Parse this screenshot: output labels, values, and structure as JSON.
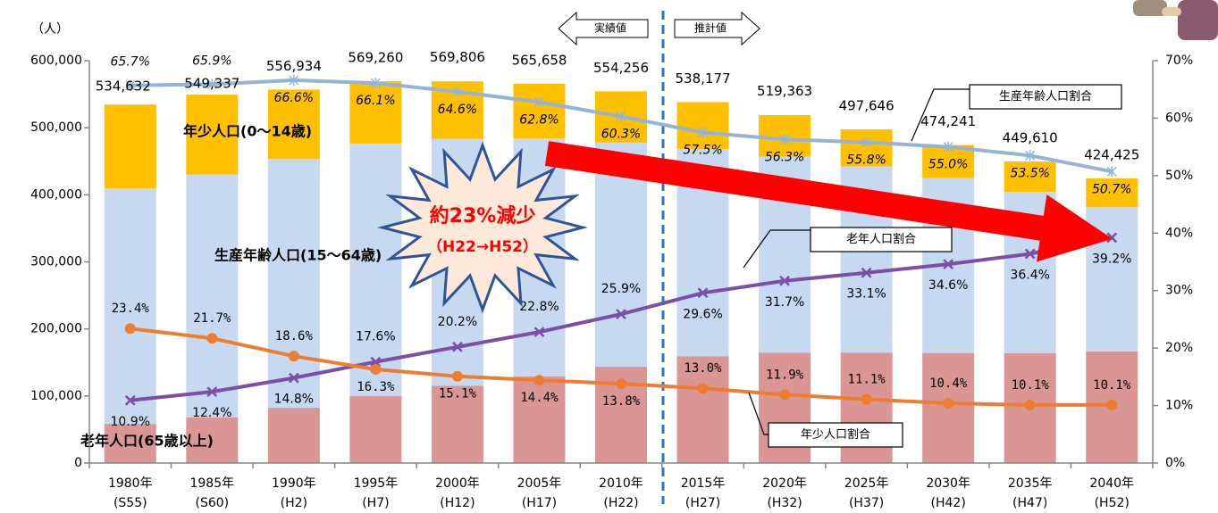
{
  "chart_data": {
    "type": "bar",
    "y_unit": "（人）",
    "categories": [
      [
        "1980年",
        "(S55)"
      ],
      [
        "1985年",
        "(S60)"
      ],
      [
        "1990年",
        "(H2)"
      ],
      [
        "1995年",
        "(H7)"
      ],
      [
        "2000年",
        "(H12)"
      ],
      [
        "2005年",
        "(H17)"
      ],
      [
        "2010年",
        "(H22)"
      ],
      [
        "2015年",
        "(H27)"
      ],
      [
        "2020年",
        "(H32)"
      ],
      [
        "2025年",
        "(H37)"
      ],
      [
        "2030年",
        "(H42)"
      ],
      [
        "2035年",
        "(H47)"
      ],
      [
        "2040年",
        "(H52)"
      ]
    ],
    "ylim": [
      0,
      600000
    ],
    "yticks": [
      0,
      {
        "value": 100000,
        "label": "100,000"
      },
      {
        "value": 200000,
        "label": "200,000"
      },
      {
        "value": 300000,
        "label": "300,000"
      },
      {
        "value": 400000,
        "label": "400,000"
      },
      {
        "value": 500000,
        "label": "500,000"
      },
      {
        "value": 600000,
        "label": "600,000"
      }
    ],
    "y2lim": [
      0,
      70
    ],
    "y2ticks": [
      {
        "value": 0,
        "label": "0%"
      },
      {
        "value": 10,
        "label": "10%"
      },
      {
        "value": 20,
        "label": "20%"
      },
      {
        "value": 30,
        "label": "30%"
      },
      {
        "value": 40,
        "label": "40%"
      },
      {
        "value": 50,
        "label": "50%"
      },
      {
        "value": 60,
        "label": "60%"
      },
      {
        "value": 70,
        "label": "70%"
      }
    ],
    "stacked": true,
    "series": [
      {
        "name": "老年人口(65歳以上)",
        "color": "#d99694",
        "values": [
          58300,
          68100,
          82400,
          100200,
          115100,
          129000,
          143600,
          159300,
          164600,
          164700,
          164100,
          163700,
          166400
        ]
      },
      {
        "name": "生産年齢人口(15～64歳)",
        "color": "#c6d9f1",
        "values": [
          351200,
          362000,
          370900,
          376300,
          368100,
          355200,
          334200,
          308900,
          292400,
          277700,
          260800,
          240500,
          215100
        ]
      },
      {
        "name": "年少人口(0～14歳)",
        "color": "#ffc000",
        "values": [
          125100,
          119200,
          103600,
          92800,
          86000,
          81500,
          76500,
          70000,
          61800,
          55200,
          49300,
          45400,
          42900
        ]
      },
      {
        "name": "生産年齢人口割合",
        "type": "line",
        "axis": "y2",
        "color": "#95b3d7",
        "marker": "star",
        "values": [
          65.7,
          65.9,
          66.6,
          66.1,
          64.6,
          62.8,
          60.3,
          57.5,
          56.3,
          55.8,
          55.0,
          53.5,
          50.7
        ],
        "value_labels": [
          "65.7%",
          "65.9%",
          "66.6%",
          "66.1%",
          "64.6%",
          "62.8%",
          "60.3%",
          "57.5%",
          "56.3%",
          "55.8%",
          "55.0%",
          "53.5%",
          "50.7%"
        ]
      },
      {
        "name": "老年人口割合",
        "type": "line",
        "axis": "y2",
        "color": "#7b4fa3",
        "marker": "x",
        "values": [
          10.9,
          12.4,
          14.8,
          17.6,
          20.2,
          22.8,
          25.9,
          29.6,
          31.7,
          33.1,
          34.6,
          36.4,
          39.2
        ],
        "value_labels": [
          "10.9%",
          "12.4%",
          "14.8%",
          "17.6%",
          "20.2%",
          "22.8%",
          "25.9%",
          "29.6%",
          "31.7%",
          "33.1%",
          "34.6%",
          "36.4%",
          "39.2%"
        ]
      },
      {
        "name": "年少人口割合",
        "type": "line",
        "axis": "y2",
        "color": "#ed7d31",
        "marker": "circle",
        "values": [
          23.4,
          21.7,
          18.6,
          16.3,
          15.1,
          14.4,
          13.8,
          13.0,
          11.9,
          11.1,
          10.4,
          10.1,
          10.1
        ],
        "value_labels": [
          "23.4%",
          "21.7%",
          "18.6%",
          "16.3%",
          "15.1%",
          "14.4%",
          "13.8%",
          "13.0%",
          "11.9%",
          "11.1%",
          "10.4%",
          "10.1%",
          "10.1%"
        ]
      }
    ],
    "totals": {
      "values": [
        534632,
        549337,
        556934,
        569260,
        569806,
        565658,
        554256,
        538177,
        519363,
        497646,
        474241,
        449610,
        424425
      ],
      "value_labels": [
        "534,632",
        "549,337",
        "556,934",
        "569,260",
        "569,806",
        "565,658",
        "554,256",
        "538,177",
        "519,363",
        "497,646",
        "474,241",
        "449,610",
        "424,425"
      ]
    },
    "annotations": {
      "actual": "実績値",
      "projected": "推計値",
      "decrease": "約23%減少",
      "decrease_range": "（H22→H52）"
    }
  }
}
